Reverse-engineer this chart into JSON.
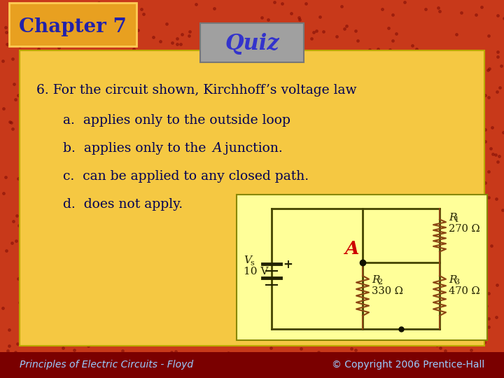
{
  "title": "Quiz",
  "chapter": "Chapter 7",
  "question": "6. For the circuit shown, Kirchhoff’s voltage law",
  "answer_a": "a.  applies only to the outside loop",
  "answer_b_normal": "b.  applies only to the ",
  "answer_b_italic": "A",
  "answer_b_end": " junction.",
  "answer_c": "c.  can be applied to any closed path.",
  "answer_d": "d.  does not apply.",
  "footer_left": "Principles of Electric Circuits - Floyd",
  "footer_right": "© Copyright 2006 Prentice-Hall",
  "bg_color": "#C8391A",
  "content_bg": "#F5C842",
  "title_box_bg": "#A0A0A0",
  "chapter_box_bg": "#E8A020",
  "chapter_text_color": "#2222AA",
  "title_text_color": "#3333CC",
  "question_text_color": "#000055",
  "circuit_bg": "#FFFF99",
  "resistor_color": "#8B4513",
  "junction_color": "#CC0000",
  "wire_color": "#444400",
  "vs_label": "V",
  "vs_sub": "s",
  "vs_value": "10 V",
  "r1_label": "R",
  "r1_sub": "1",
  "r1_value": "270 Ω",
  "r2_label": "R",
  "r2_sub": "2",
  "r2_value": "330 Ω",
  "r3_label": "R",
  "r3_sub": "3",
  "r3_value": "470 Ω",
  "a_label": "A"
}
